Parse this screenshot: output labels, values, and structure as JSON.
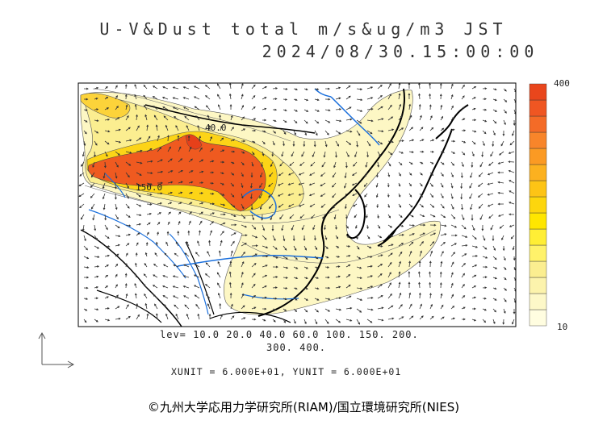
{
  "title": {
    "line1": "U-V&Dust total m/s&ug/m3 JST",
    "line2": "2024/08/30.15:00:00"
  },
  "colorbar": {
    "max_label": "400",
    "min_label": "10",
    "colors": [
      "#fffde0",
      "#fdf8c8",
      "#fcf3ac",
      "#fbee90",
      "#fff26a",
      "#ffee35",
      "#ffe600",
      "#fdd60d",
      "#fdc415",
      "#fcb11f",
      "#fb9a23",
      "#f8852a",
      "#f46b27",
      "#ef5622",
      "#e9461c"
    ]
  },
  "levels": {
    "line1": "lev= 10.0 20.0 40.0 60.0 100. 150. 200.",
    "line2": "300. 400."
  },
  "units_text": "XUNIT = 6.000E+01, YUNIT = 6.000E+01",
  "contour_labels": [
    "40.0",
    "150.0"
  ],
  "credit": "©九州大学応用力学研究所(RIAM)/国立環境研究所(NIES)"
}
